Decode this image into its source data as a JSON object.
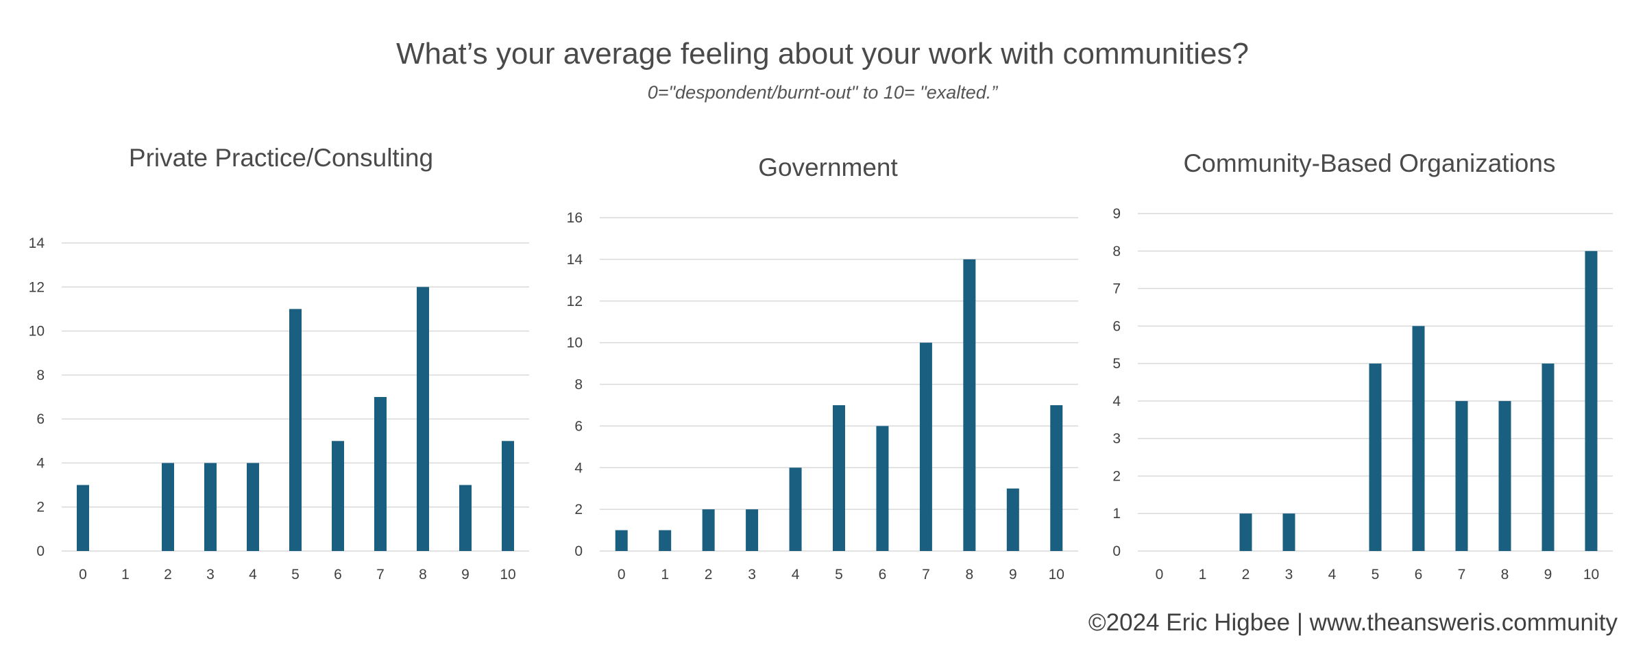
{
  "header": {
    "title": "What’s your average feeling about your work with communities?",
    "subtitle": "0=\"despondent/burnt-out\" to 10= \"exalted.”"
  },
  "footer": {
    "credit": "©2024  Eric Higbee | www.theansweris.community"
  },
  "colors": {
    "bar": "#1a5e80",
    "grid": "#d9d9d9",
    "text": "#404040"
  },
  "chart_data": [
    {
      "type": "bar",
      "title": "Private Practice/Consulting",
      "categories": [
        "0",
        "1",
        "2",
        "3",
        "4",
        "5",
        "6",
        "7",
        "8",
        "9",
        "10"
      ],
      "values": [
        3,
        0,
        4,
        4,
        4,
        11,
        5,
        7,
        12,
        3,
        5
      ],
      "ylim": [
        0,
        14
      ],
      "yticks": [
        "0",
        "2",
        "4",
        "6",
        "8",
        "10",
        "12",
        "14"
      ],
      "xlabel": "",
      "ylabel": "",
      "grid": true,
      "legend": "none"
    },
    {
      "type": "bar",
      "title": "Government",
      "categories": [
        "0",
        "1",
        "2",
        "3",
        "4",
        "5",
        "6",
        "7",
        "8",
        "9",
        "10"
      ],
      "values": [
        1,
        1,
        2,
        2,
        4,
        7,
        6,
        10,
        14,
        3,
        7
      ],
      "ylim": [
        0,
        16
      ],
      "yticks": [
        "0",
        "2",
        "4",
        "6",
        "8",
        "10",
        "12",
        "14",
        "16"
      ],
      "xlabel": "",
      "ylabel": "",
      "grid": true,
      "legend": "none"
    },
    {
      "type": "bar",
      "title": "Community-Based Organizations",
      "categories": [
        "0",
        "1",
        "2",
        "3",
        "4",
        "5",
        "6",
        "7",
        "8",
        "9",
        "10"
      ],
      "values": [
        0,
        0,
        1,
        1,
        0,
        5,
        6,
        4,
        4,
        5,
        8
      ],
      "ylim": [
        0,
        9
      ],
      "yticks": [
        "0",
        "1",
        "2",
        "3",
        "4",
        "5",
        "6",
        "7",
        "8",
        "9"
      ],
      "xlabel": "",
      "ylabel": "",
      "grid": true,
      "legend": "none"
    }
  ]
}
